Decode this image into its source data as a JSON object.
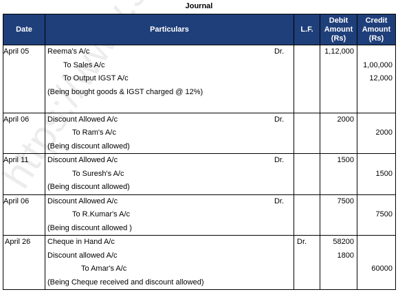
{
  "title": "Journal",
  "watermark": "https://www.studiestoday.com",
  "headers": {
    "date": "Date",
    "particulars": "Particulars",
    "lf": "L.F.",
    "debit": "Debit Amount (Rs)",
    "credit": "Credit Amount (Rs)"
  },
  "entries": [
    {
      "date": "April 05",
      "lines": [
        {
          "text": "Reema's A/c",
          "dr": "Dr.",
          "lf": "",
          "debit": "1,12,000",
          "credit": ""
        },
        {
          "text": "To Sales A/c",
          "dr": "",
          "lf": "",
          "debit": "",
          "credit": "1,00,000"
        },
        {
          "text": "To Output IGST A/c",
          "dr": "",
          "lf": "",
          "debit": "",
          "credit": "12,000"
        },
        {
          "text": "(Being bought goods & IGST charged @ 12%)",
          "dr": "",
          "lf": "",
          "debit": "",
          "credit": ""
        }
      ]
    },
    {
      "date": "April 06",
      "lines": [
        {
          "text": "Discount Allowed A/c",
          "dr": "Dr.",
          "lf": "",
          "debit": "2000",
          "credit": ""
        },
        {
          "text": "To Ram's A/c",
          "dr": "",
          "lf": "",
          "debit": "",
          "credit": "2000"
        },
        {
          "text": "(Being discount allowed)",
          "dr": "",
          "lf": "",
          "debit": "",
          "credit": ""
        }
      ]
    },
    {
      "date": "April 11",
      "lines": [
        {
          "text": "Discount Allowed A/c",
          "dr": "Dr.",
          "lf": "",
          "debit": "1500",
          "credit": ""
        },
        {
          "text": "To Suresh's A/c",
          "dr": "",
          "lf": "",
          "debit": "",
          "credit": "1500"
        },
        {
          "text": "(Being discount allowed)",
          "dr": "",
          "lf": "",
          "debit": "",
          "credit": ""
        }
      ]
    },
    {
      "date": "April 06",
      "lines": [
        {
          "text": "Discount Allowed A/c",
          "dr": "Dr.",
          "lf": "",
          "debit": "7500",
          "credit": ""
        },
        {
          "text": "To R.Kumar's A/c",
          "dr": "",
          "lf": "",
          "debit": "",
          "credit": "7500"
        },
        {
          "text": "(Being discount allowed )",
          "dr": "",
          "lf": "",
          "debit": "",
          "credit": ""
        }
      ]
    },
    {
      "date": "April 26",
      "lines": [
        {
          "text": "Cheque in Hand A/c",
          "dr": "",
          "lf": "Dr.",
          "debit": "58200",
          "credit": ""
        },
        {
          "text": "Discount allowed A/c",
          "dr": "",
          "lf": "",
          "debit": "1800",
          "credit": ""
        },
        {
          "text": "To Amar's A/c",
          "dr": "",
          "lf": "",
          "debit": "",
          "credit": "60000"
        },
        {
          "text": "(Being Cheque received and discount allowed)",
          "dr": "",
          "lf": "",
          "debit": "",
          "credit": ""
        }
      ]
    }
  ]
}
